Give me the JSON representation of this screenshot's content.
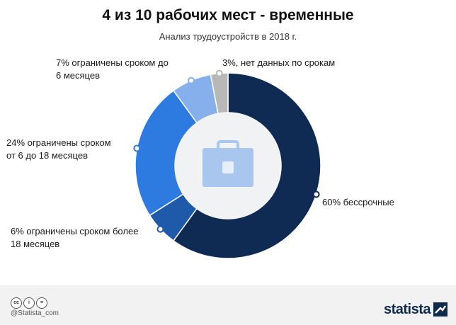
{
  "header": {
    "title": "4 из 10 рабочих мест - временные",
    "subtitle": "Анализ трудоустройств в 2018 г."
  },
  "chart_data": {
    "type": "pie",
    "title": "4 из 10 рабочих мест - временные",
    "subtitle": "Анализ трудоустройств в 2018 г.",
    "unit": "%",
    "slices": [
      {
        "label": "60% бессрочные",
        "value": 60,
        "color": "#0f2b53"
      },
      {
        "label": "6% ограничены сроком более 18 месяцев",
        "value": 6,
        "color": "#1f5aaa"
      },
      {
        "label": "24% ограничены сроком от 6 до 18 месяцев",
        "value": 24,
        "color": "#2d7ae0"
      },
      {
        "label": "7% ограничены сроком до 6 месяцев",
        "value": 7,
        "color": "#86b0ec"
      },
      {
        "label": "3%, нет данных по срокам",
        "value": 3,
        "color": "#b8b8b8"
      }
    ],
    "center_icon": "briefcase-icon",
    "center_icon_color": "#a9c6ef"
  },
  "labels": {
    "l60": "60% бессрочные",
    "l6_line1": "6% ограничены сроком более",
    "l6_line2": "18 месяцев",
    "l24_line1": "24% ограничены сроком",
    "l24_line2": "от 6 до 18 месяцев",
    "l7_line1": "7% ограничены сроком до",
    "l7_line2": "6 месяцев",
    "l3": "3%, нет данных по срокам"
  },
  "footer": {
    "handle": "@Statista_com",
    "brand": "statista",
    "license_icons": [
      "cc-icon",
      "info-icon",
      "equals-icon"
    ],
    "license_glyphs": [
      "cc",
      "i",
      "="
    ]
  }
}
